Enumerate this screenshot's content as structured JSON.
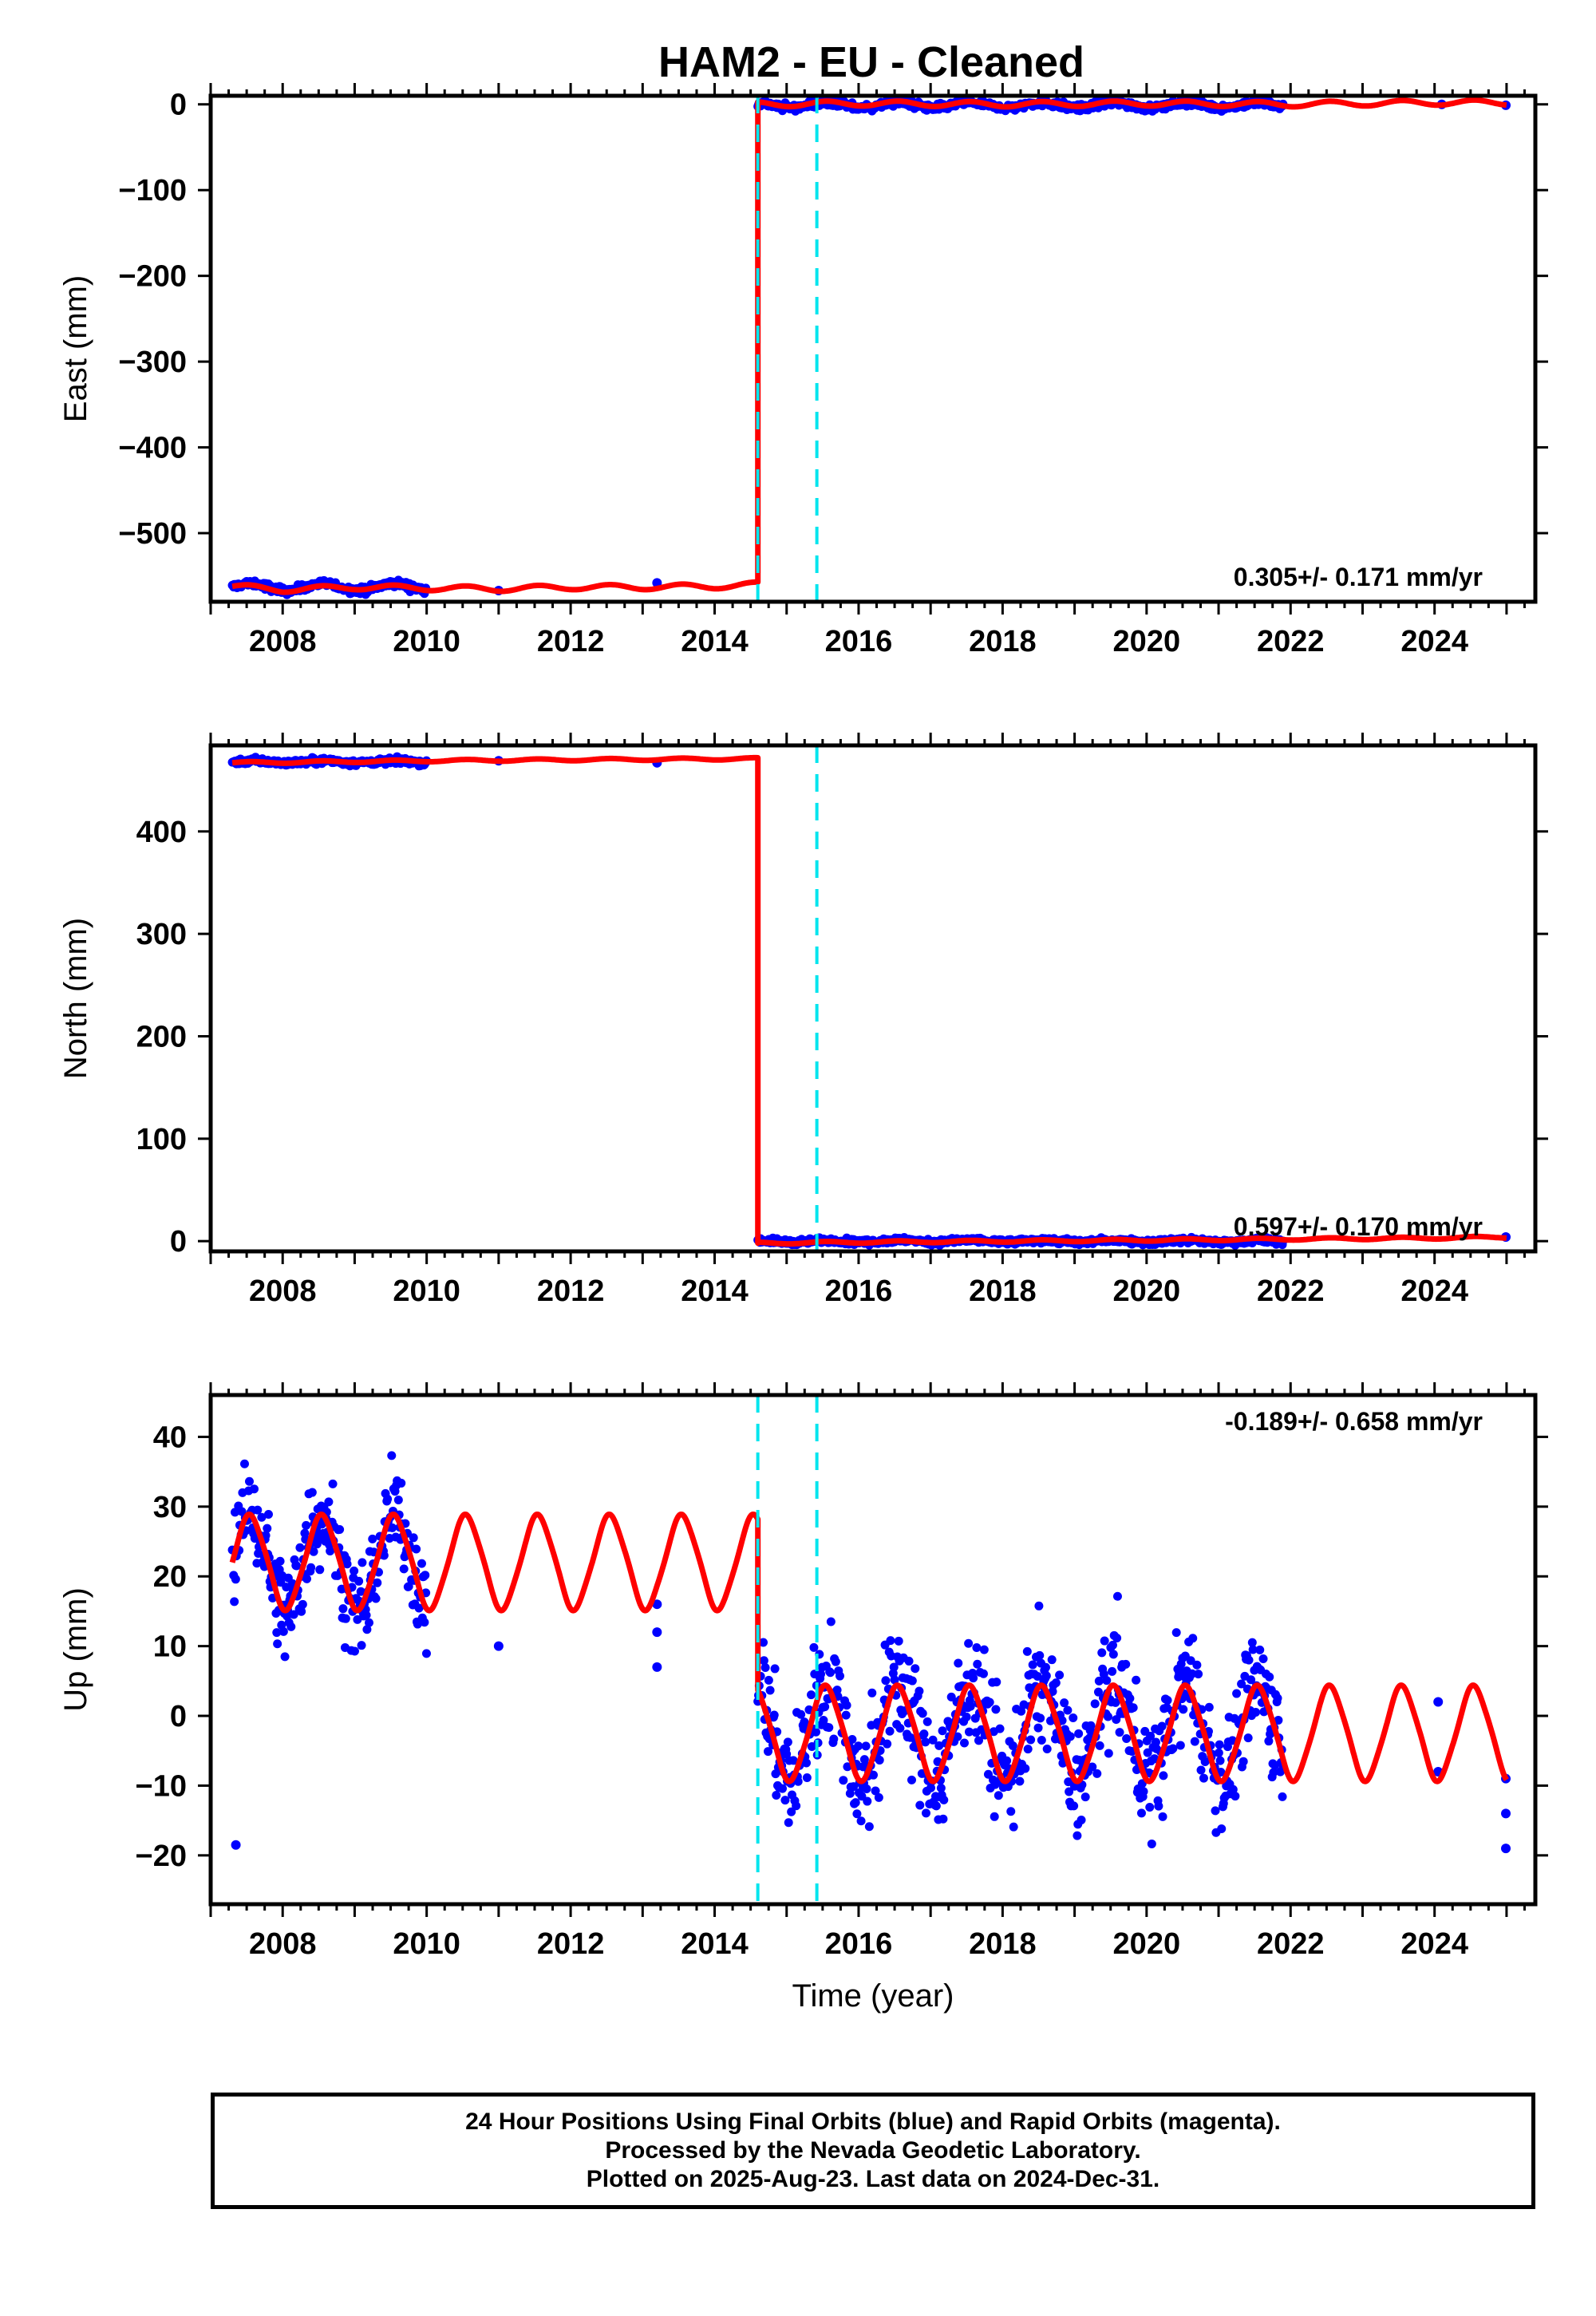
{
  "title": "HAM2  - EU - Cleaned",
  "footer": {
    "line1": "24 Hour Positions Using Final Orbits (blue) and Rapid Orbits (magenta).",
    "line2": "Processed by the Nevada Geodetic Laboratory.",
    "line3": "Plotted on 2025-Aug-23. Last data on 2024-Dec-31."
  },
  "colors": {
    "data_points": "#0000ff",
    "model": "#ff0000",
    "offset_line": "#00e5ee",
    "frame": "#000000"
  },
  "chart_data": [
    {
      "type": "scatter",
      "name": "east",
      "ylabel": "East (mm)",
      "xlabel": "",
      "xlim": [
        2007.0,
        2025.4
      ],
      "ylim": [
        -580,
        10
      ],
      "yticks": [
        0,
        -100,
        -200,
        -300,
        -400,
        -500
      ],
      "xticks": [
        2008,
        2010,
        2012,
        2014,
        2016,
        2018,
        2020,
        2022,
        2024
      ],
      "rate_text": "0.305+/- 0.171 mm/yr",
      "rate_position": "bottom-right",
      "offsets": [
        2014.6,
        2015.42
      ],
      "segments": [
        {
          "start": 2007.3,
          "end": 2010.0,
          "level": -563,
          "amplitude": 4,
          "noise": 3
        },
        {
          "start": 2014.6,
          "end": 2021.9,
          "level": -1,
          "amplitude": 3,
          "noise": 3
        }
      ],
      "isolated_points": [
        {
          "x": 2011.0,
          "y": -567
        },
        {
          "x": 2013.2,
          "y": -558
        },
        {
          "x": 2024.1,
          "y": 0
        },
        {
          "x": 2024.99,
          "y": -1
        }
      ],
      "model": [
        {
          "x": 2007.3,
          "y": -562
        },
        {
          "x": 2008.0,
          "y": -566
        },
        {
          "x": 2009.0,
          "y": -563
        },
        {
          "x": 2010.0,
          "y": -564
        },
        {
          "x": 2011.0,
          "y": -565
        },
        {
          "x": 2012.0,
          "y": -563
        },
        {
          "x": 2013.0,
          "y": -563
        },
        {
          "x": 2014.0,
          "y": -562
        },
        {
          "x": 2014.6,
          "y": -560
        },
        {
          "x": 2014.6,
          "y": 0
        },
        {
          "x": 2016.0,
          "y": 1
        },
        {
          "x": 2018.0,
          "y": 0
        },
        {
          "x": 2020.0,
          "y": 1
        },
        {
          "x": 2022.0,
          "y": 0
        },
        {
          "x": 2024.0,
          "y": 2
        },
        {
          "x": 2025.0,
          "y": 2
        }
      ],
      "model_amplitude": 3
    },
    {
      "type": "scatter",
      "name": "north",
      "ylabel": "North (mm)",
      "xlabel": "",
      "xlim": [
        2007.0,
        2025.4
      ],
      "ylim": [
        -10,
        484
      ],
      "yticks": [
        0,
        100,
        200,
        300,
        400
      ],
      "xticks": [
        2008,
        2010,
        2012,
        2014,
        2016,
        2018,
        2020,
        2022,
        2024
      ],
      "rate_text": "0.597+/- 0.170 mm/yr",
      "rate_position": "bottom-right",
      "offsets": [
        2015.42
      ],
      "segments": [
        {
          "start": 2007.3,
          "end": 2010.0,
          "level": 468,
          "amplitude": 1,
          "noise": 2
        },
        {
          "start": 2014.6,
          "end": 2021.9,
          "level": 0,
          "amplitude": 1,
          "noise": 2
        }
      ],
      "isolated_points": [
        {
          "x": 2011.0,
          "y": 469
        },
        {
          "x": 2013.2,
          "y": 467
        },
        {
          "x": 2024.99,
          "y": 4
        }
      ],
      "model": [
        {
          "x": 2007.3,
          "y": 467
        },
        {
          "x": 2010.0,
          "y": 469
        },
        {
          "x": 2012.0,
          "y": 470
        },
        {
          "x": 2014.6,
          "y": 471
        },
        {
          "x": 2014.6,
          "y": -2
        },
        {
          "x": 2016.0,
          "y": -1
        },
        {
          "x": 2018.0,
          "y": 0
        },
        {
          "x": 2020.0,
          "y": 1
        },
        {
          "x": 2022.0,
          "y": 2
        },
        {
          "x": 2024.0,
          "y": 3
        },
        {
          "x": 2025.0,
          "y": 4
        }
      ],
      "model_amplitude": 1
    },
    {
      "type": "scatter",
      "name": "up",
      "ylabel": "Up (mm)",
      "xlabel": "Time (year)",
      "xlim": [
        2007.0,
        2025.4
      ],
      "ylim": [
        -27,
        46
      ],
      "yticks": [
        40,
        30,
        20,
        10,
        0,
        -10,
        -20
      ],
      "xticks": [
        2008,
        2010,
        2012,
        2014,
        2016,
        2018,
        2020,
        2022,
        2024
      ],
      "rate_text": "-0.189+/- 0.658 mm/yr",
      "rate_position": "top-right",
      "offsets": [
        2014.6,
        2015.42
      ],
      "segments": [
        {
          "start": 2007.3,
          "end": 2010.0,
          "level": 22,
          "amplitude": 7,
          "noise": 5
        },
        {
          "start": 2014.6,
          "end": 2021.9,
          "level": -2,
          "amplitude": 7,
          "noise": 6
        }
      ],
      "isolated_points": [
        {
          "x": 2007.35,
          "y": -18.5
        },
        {
          "x": 2011.0,
          "y": 10
        },
        {
          "x": 2013.2,
          "y": 16
        },
        {
          "x": 2013.2,
          "y": 12
        },
        {
          "x": 2013.2,
          "y": 7
        },
        {
          "x": 2024.05,
          "y": 2
        },
        {
          "x": 2024.05,
          "y": -8
        },
        {
          "x": 2024.99,
          "y": -9
        },
        {
          "x": 2024.99,
          "y": -14
        },
        {
          "x": 2024.99,
          "y": -19
        }
      ],
      "model_segments": [
        {
          "start": 2007.3,
          "end": 2014.6,
          "level": 22,
          "amplitude": 7
        },
        {
          "start": 2014.6,
          "end": 2025.0,
          "level": -2.5,
          "amplitude": 7
        }
      ]
    }
  ]
}
